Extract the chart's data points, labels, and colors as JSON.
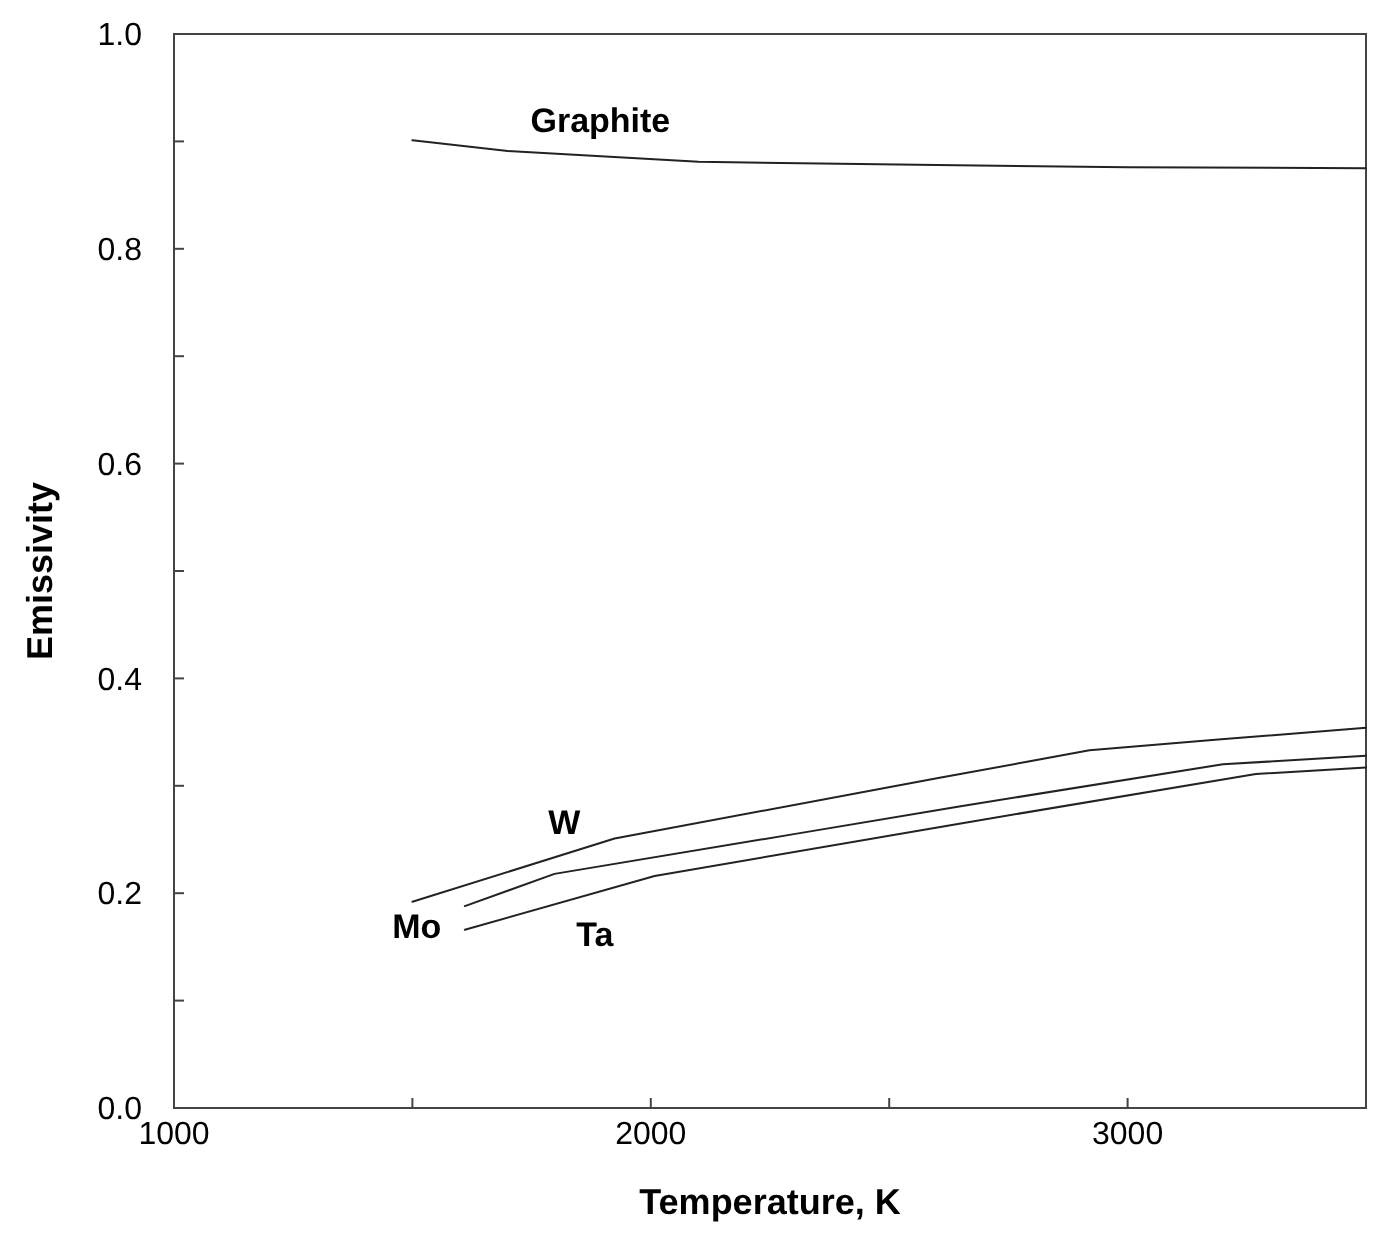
{
  "chart_data": {
    "type": "line",
    "xlabel": "Temperature, K",
    "ylabel": "Emissivity",
    "xlim": [
      1000,
      3500
    ],
    "ylim": [
      0,
      1
    ],
    "xticks": [
      1000,
      {
        "value": 1500,
        "label": null
      },
      2000,
      {
        "value": 2500,
        "label": null
      },
      3000
    ],
    "yticks": [
      {
        "value": 0,
        "label": "0.0"
      },
      {
        "value": 0.1,
        "label": null
      },
      {
        "value": 0.2,
        "label": "0.2"
      },
      {
        "value": 0.3,
        "label": null
      },
      {
        "value": 0.4,
        "label": "0.4"
      },
      {
        "value": 0.5,
        "label": null
      },
      {
        "value": 0.6,
        "label": "0.6"
      },
      {
        "value": 0.7,
        "label": null
      },
      {
        "value": 0.8,
        "label": "0.8"
      },
      {
        "value": 0.9,
        "label": null
      },
      {
        "value": 1,
        "label": "1.0"
      }
    ],
    "grid": false,
    "marker": "none",
    "line_style": "solid",
    "series": [
      {
        "name": "Graphite",
        "color": "#222222",
        "x": [
          1500,
          1700,
          2100,
          2600,
          3000,
          3500
        ],
        "values": [
          0.901,
          0.891,
          0.881,
          0.878,
          0.876,
          0.875
        ]
      },
      {
        "name": "W",
        "color": "#222222",
        "x": [
          1500,
          1924,
          2600,
          2920,
          3190,
          3500
        ],
        "values": [
          0.192,
          0.251,
          0.307,
          0.333,
          0.343,
          0.354
        ]
      },
      {
        "name": "Mo",
        "color": "#222222",
        "x": [
          1610,
          1798,
          2300,
          2650,
          3200,
          3500
        ],
        "values": [
          0.188,
          0.218,
          0.255,
          0.281,
          0.32,
          0.328
        ]
      },
      {
        "name": "Ta",
        "color": "#222222",
        "x": [
          1610,
          2008,
          2650,
          3269,
          3500
        ],
        "values": [
          0.166,
          0.216,
          0.265,
          0.311,
          0.317
        ]
      }
    ]
  }
}
